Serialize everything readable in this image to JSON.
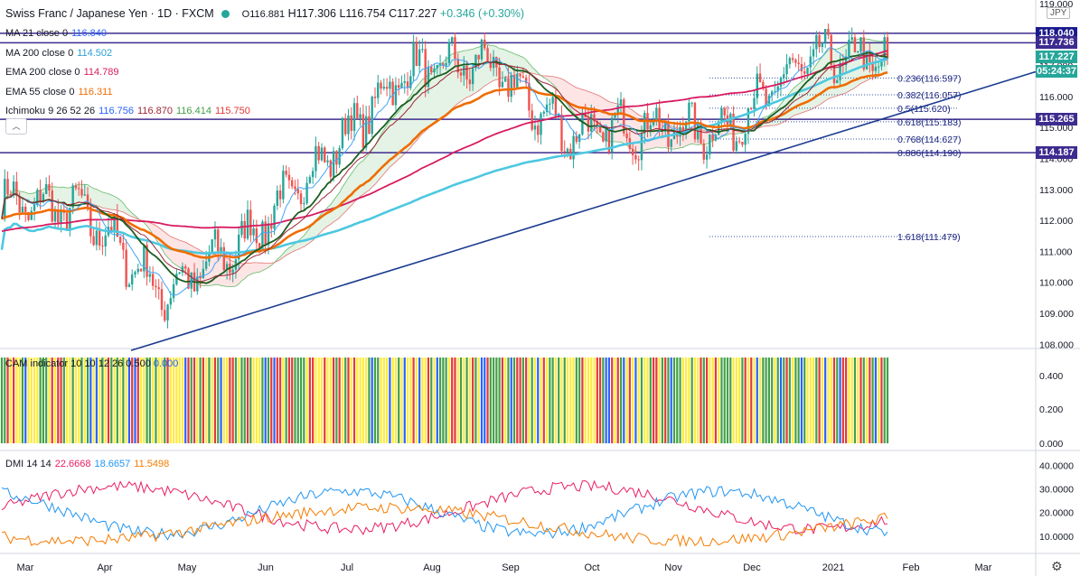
{
  "header": {
    "symbol": "Swiss Franc / Japanese Yen · 1D · FXCM",
    "open": "O116.881",
    "high": "H117.306",
    "low": "L116.754",
    "close": "C117.227",
    "change": "+0.346 (+0.30%)"
  },
  "currency": "JPY",
  "legends": [
    {
      "label": "MA 21 close 0",
      "values": [
        "116.840"
      ],
      "colors": [
        "#2962ff"
      ]
    },
    {
      "label": "MA 200 close 0",
      "values": [
        "114.502"
      ],
      "colors": [
        "#2aa0d8"
      ]
    },
    {
      "label": "EMA 200 close 0",
      "values": [
        "114.789"
      ],
      "colors": [
        "#d81b60"
      ]
    },
    {
      "label": "EMA 55 close 0",
      "values": [
        "116.311"
      ],
      "colors": [
        "#ef6c00"
      ]
    },
    {
      "label": "Ichimoku 9 26 52 26",
      "values": [
        "116.756",
        "116.870",
        "116.414",
        "115.750"
      ],
      "colors": [
        "#2962ff",
        "#9c2737",
        "#43a047",
        "#e53935"
      ]
    }
  ],
  "collapse_label": "︿",
  "price_badges": [
    {
      "value": "118.040",
      "color": "#1a1a8c"
    },
    {
      "value": "117.736",
      "color": "#3d2b8f"
    },
    {
      "value": "117.227",
      "color": "#26a69a"
    },
    {
      "value": "05:24:37",
      "color": "#26a69a"
    },
    {
      "value": "115.265",
      "color": "#3d2b8f"
    },
    {
      "value": "114.187",
      "color": "#3d2b8f"
    }
  ],
  "fib_levels": [
    {
      "label": "0.236(116.597)",
      "price": 116.597
    },
    {
      "label": "0.382(116.057)",
      "price": 116.057
    },
    {
      "label": "0.5(115.620)",
      "price": 115.62
    },
    {
      "label": "0.618(115.183)",
      "price": 115.183
    },
    {
      "label": "0.768(114.627)",
      "price": 114.627
    },
    {
      "label": "0.886(114.190)",
      "price": 114.19
    },
    {
      "label": "1.618(111.479)",
      "price": 111.479
    }
  ],
  "horizontal_levels": [
    118.04,
    117.736,
    115.265,
    114.187
  ],
  "cam": {
    "legend": "CAM indicator 10 10 12 26 0.500",
    "legend_value": "0.000",
    "ticks": [
      "0.400",
      "0.200",
      "0.000"
    ],
    "colors": {
      "green": "#43a047",
      "yellow": "#ffeb3b",
      "red": "#e53935",
      "blue": "#2962ff"
    }
  },
  "dmi": {
    "legend": "DMI 14 14",
    "values": [
      "22.6668",
      "18.6657",
      "11.5498"
    ],
    "colors": [
      "#e91e63",
      "#2196f3",
      "#f57c00"
    ],
    "ticks": [
      "40.0000",
      "30.0000",
      "20.0000",
      "10.0000"
    ]
  },
  "time_axis": [
    "Mar",
    "Apr",
    "May",
    "Jun",
    "Jul",
    "Aug",
    "Sep",
    "Oct",
    "Nov",
    "Dec",
    "2021",
    "Feb",
    "Mar"
  ],
  "chart_data": {
    "type": "candlestick",
    "price_ticks": [
      "119.000",
      "118.000",
      "117.000",
      "116.000",
      "115.000",
      "114.000",
      "113.000",
      "112.000",
      "111.000",
      "110.000",
      "109.000",
      "108.000"
    ],
    "price_range": [
      107.7,
      119.1
    ],
    "monthly_path": [
      {
        "month": "Mar",
        "price": 112.6
      },
      {
        "month": "Apr",
        "price": 112.3
      },
      {
        "month": "May",
        "price": 109.6
      },
      {
        "month": "Jun",
        "price": 111.3
      },
      {
        "month": "Jul",
        "price": 114.0
      },
      {
        "month": "Aug",
        "price": 116.8
      },
      {
        "month": "Sep",
        "price": 117.1
      },
      {
        "month": "Oct",
        "price": 114.8
      },
      {
        "month": "Nov",
        "price": 115.0
      },
      {
        "month": "Dec",
        "price": 114.9
      },
      {
        "month": "2021",
        "price": 117.2
      },
      {
        "month": "Feb",
        "price": 117.227
      }
    ],
    "last_price": 117.227
  }
}
